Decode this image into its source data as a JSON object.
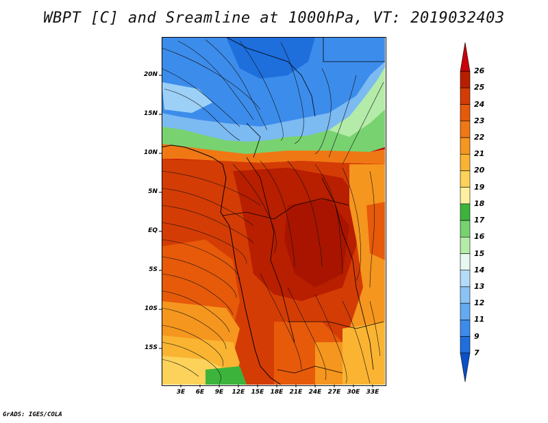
{
  "title": "WBPT [C] and Sreamline at 1000hPa, VT: 2019032403",
  "footer": "GrADS: IGES/COLA",
  "map": {
    "lat_labels": [
      "20N",
      "15N",
      "10N",
      "5N",
      "EQ",
      "5S",
      "10S",
      "15S"
    ],
    "lon_labels": [
      "3E",
      "6E",
      "9E",
      "12E",
      "15E",
      "18E",
      "21E",
      "24E",
      "27E",
      "30E",
      "33E"
    ]
  },
  "colorbar": {
    "levels": [
      "26",
      "25",
      "24",
      "23",
      "22",
      "21",
      "20",
      "19",
      "18",
      "17",
      "16",
      "15",
      "14",
      "13",
      "12",
      "11",
      "9",
      "7"
    ],
    "colors": [
      "#c8000a",
      "#b81e00",
      "#d43c05",
      "#e65a0a",
      "#f07814",
      "#f5961e",
      "#fab432",
      "#fcd25a",
      "#fff0a0",
      "#3cb43c",
      "#78d270",
      "#b4eba8",
      "#e6f8f0",
      "#b4dcf8",
      "#8cc3f5",
      "#64aaf0",
      "#3c8ceb",
      "#1e6edc",
      "#0a50c8"
    ]
  }
}
